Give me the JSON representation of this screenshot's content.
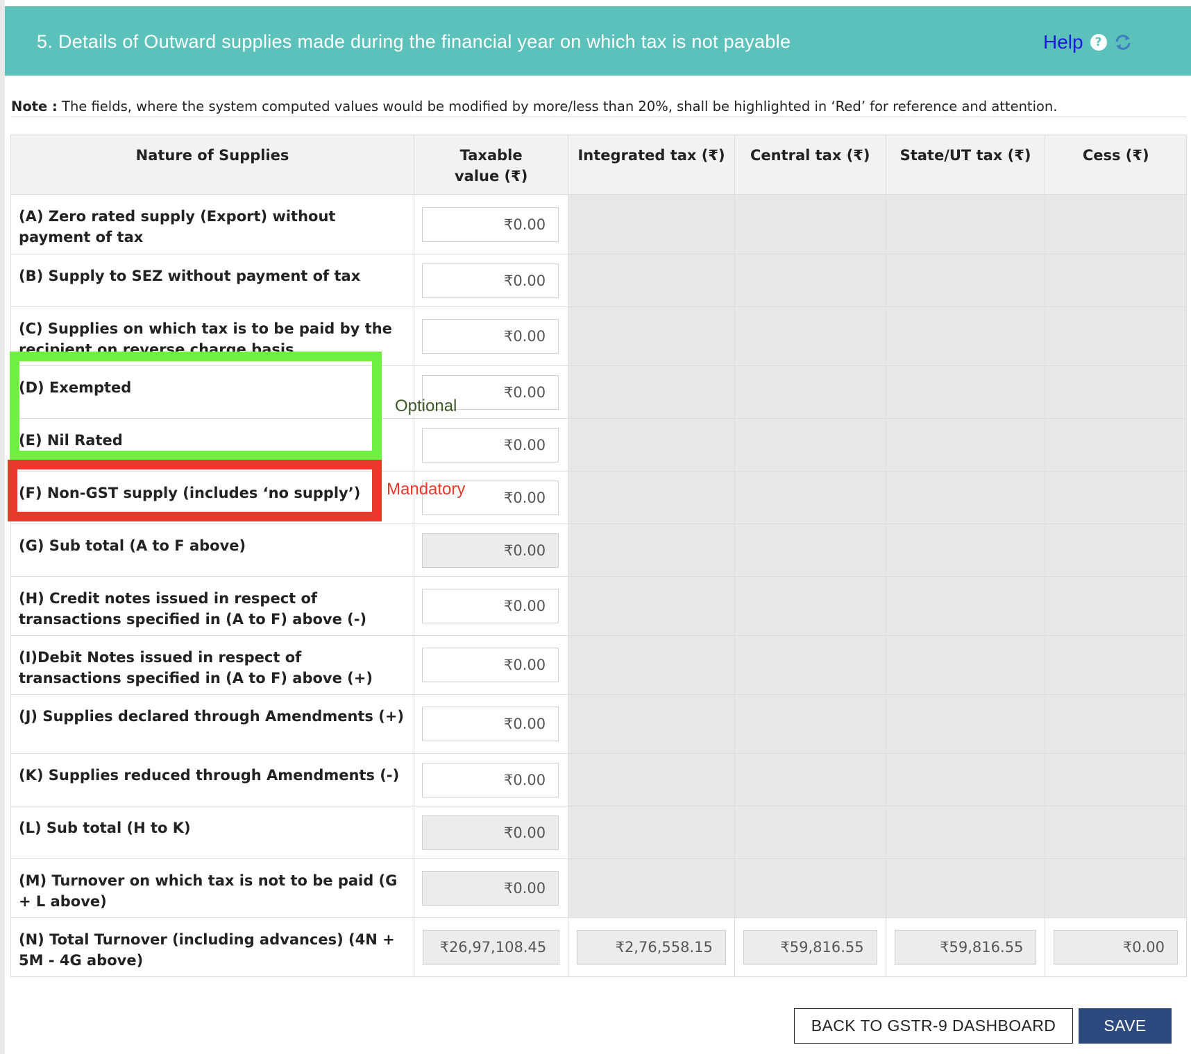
{
  "header": {
    "title": "5. Details of Outward supplies made during the financial year on which tax is not payable",
    "help_label": "Help",
    "help_icon": "question-circle-icon",
    "refresh_icon": "refresh-icon"
  },
  "note": {
    "prefix": "Note :",
    "text": " The fields, where the system computed values would be modified by more/less than 20%, shall be highlighted in ‘Red’ for reference and attention."
  },
  "table": {
    "headers": [
      "Nature of Supplies",
      "Taxable value (₹)",
      "Integrated tax (₹)",
      "Central tax (₹)",
      "State/UT tax (₹)",
      "Cess (₹)"
    ],
    "rows": [
      {
        "label": "(A) Zero rated supply (Export) without payment of tax",
        "value": "₹0.00"
      },
      {
        "label": "(B) Supply to SEZ without payment of tax",
        "value": "₹0.00"
      },
      {
        "label": "(C) Supplies on which tax is to be paid by the recipient on reverse charge basis",
        "value": "₹0.00"
      },
      {
        "label": "(D) Exempted",
        "value": "₹0.00"
      },
      {
        "label": "(E) Nil Rated",
        "value": "₹0.00"
      },
      {
        "label": "(F) Non-GST supply (includes ‘no supply’)",
        "value": "₹0.00"
      },
      {
        "label": "(G) Sub total (A to F above)",
        "value": "₹0.00"
      },
      {
        "label": "(H) Credit notes issued in respect of transactions specified in (A to F) above (-)",
        "value": "₹0.00"
      },
      {
        "label": "(I)Debit Notes issued in respect of transactions specified in (A to F) above (+)",
        "value": "₹0.00"
      },
      {
        "label": "(J) Supplies declared through Amendments (+)",
        "value": "₹0.00"
      },
      {
        "label": "(K) Supplies reduced through Amendments (-)",
        "value": "₹0.00"
      },
      {
        "label": "(L) Sub total (H to K)",
        "value": "₹0.00"
      },
      {
        "label": "(M) Turnover on which tax is not to be paid (G + L above)",
        "value": "₹0.00"
      }
    ],
    "total_row": {
      "label": "(N) Total Turnover (including advances) (4N + 5M - 4G above)",
      "taxable": "₹26,97,108.45",
      "integrated": "₹2,76,558.15",
      "central": "₹59,816.55",
      "state": "₹59,816.55",
      "cess": "₹0.00"
    }
  },
  "annotations": {
    "optional": "Optional",
    "mandatory": "Mandatory",
    "optional_color": "#6ff040",
    "mandatory_color": "#e9392a"
  },
  "buttons": {
    "back": "BACK TO GSTR-9 DASHBOARD",
    "save": "SAVE"
  },
  "colors": {
    "header_bg": "#5cc1bb",
    "help_link": "#1a1adb",
    "save_bg": "#2d4a7e"
  }
}
